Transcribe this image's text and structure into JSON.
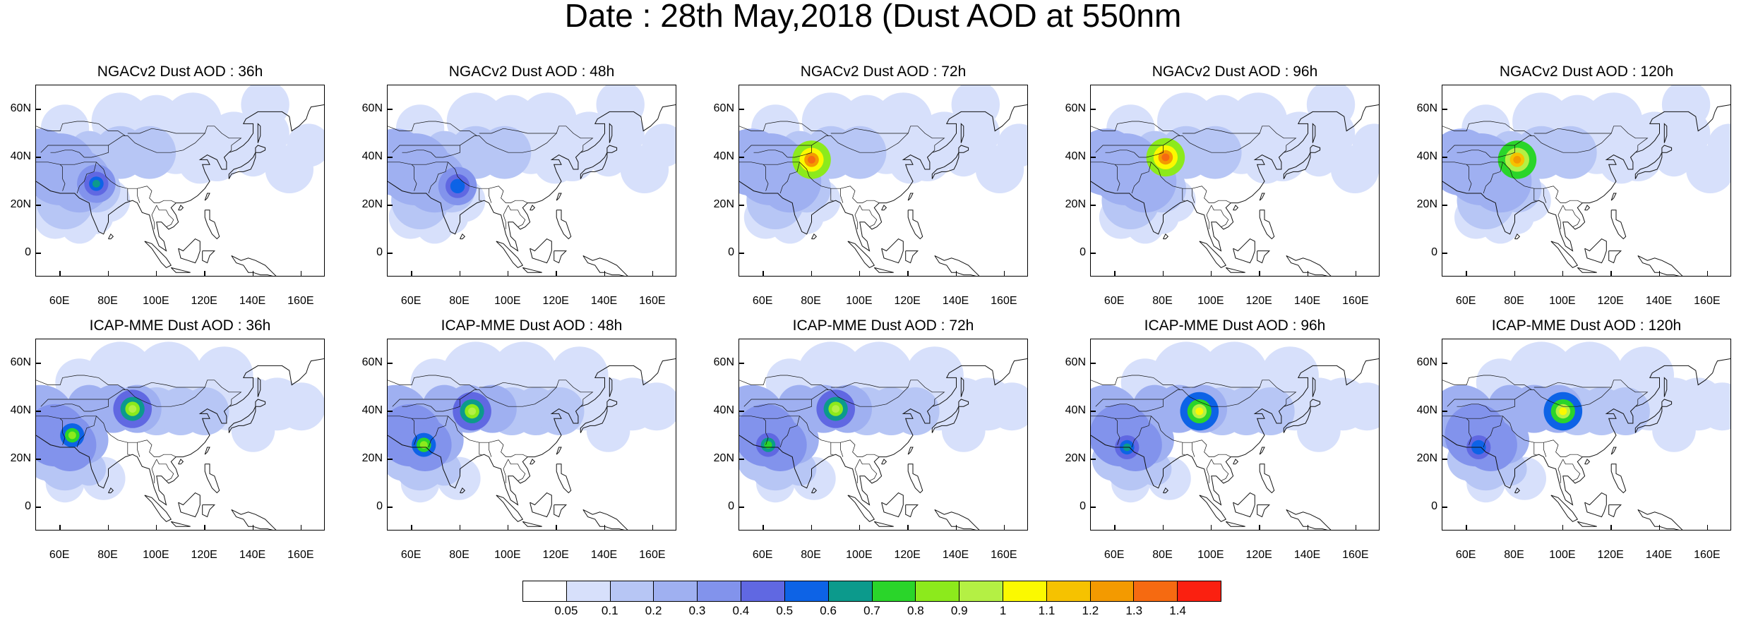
{
  "title": "Date : 28th May,2018 (Dust AOD at 550nm",
  "lat_labels": [
    "60N",
    "40N",
    "20N",
    "0"
  ],
  "lon_labels": [
    "60E",
    "80E",
    "100E",
    "120E",
    "140E",
    "160E"
  ],
  "map_extent": {
    "lon_min": 50,
    "lon_max": 170,
    "lat_min": -10,
    "lat_max": 70
  },
  "panels": [
    {
      "title": "NGACv2 Dust AOD : 36h",
      "hotspots": [
        {
          "lon": 75,
          "lat": 29,
          "level": 7
        }
      ]
    },
    {
      "title": "NGACv2 Dust AOD : 48h",
      "hotspots": [
        {
          "lon": 79,
          "lat": 28,
          "level": 6
        }
      ]
    },
    {
      "title": "NGACv2 Dust AOD : 72h",
      "hotspots": [
        {
          "lon": 80,
          "lat": 39,
          "level": 14
        }
      ]
    },
    {
      "title": "NGACv2 Dust AOD : 96h",
      "hotspots": [
        {
          "lon": 81,
          "lat": 40,
          "level": 14
        }
      ]
    },
    {
      "title": "NGACv2 Dust AOD : 120h",
      "hotspots": [
        {
          "lon": 81,
          "lat": 39,
          "level": 13
        }
      ]
    },
    {
      "title": "ICAP-MME Dust AOD : 36h",
      "hotspots": [
        {
          "lon": 90,
          "lat": 41,
          "level": 10
        },
        {
          "lon": 65,
          "lat": 30,
          "level": 9
        }
      ]
    },
    {
      "title": "ICAP-MME Dust AOD : 48h",
      "hotspots": [
        {
          "lon": 85,
          "lat": 40,
          "level": 10
        },
        {
          "lon": 65,
          "lat": 26,
          "level": 9
        }
      ]
    },
    {
      "title": "ICAP-MME Dust AOD : 72h",
      "hotspots": [
        {
          "lon": 90,
          "lat": 41,
          "level": 10
        },
        {
          "lon": 62,
          "lat": 26,
          "level": 8
        }
      ]
    },
    {
      "title": "ICAP-MME Dust AOD : 96h",
      "hotspots": [
        {
          "lon": 95,
          "lat": 40,
          "level": 11
        },
        {
          "lon": 65,
          "lat": 25,
          "level": 7
        }
      ]
    },
    {
      "title": "ICAP-MME Dust AOD : 120h",
      "hotspots": [
        {
          "lon": 100,
          "lat": 40,
          "level": 11
        },
        {
          "lon": 65,
          "lat": 25,
          "level": 6
        }
      ]
    }
  ],
  "colorbar": {
    "colors": [
      "#ffffff",
      "#d7e0fb",
      "#b7c6f5",
      "#9fb0f1",
      "#8293ec",
      "#6068e2",
      "#0d63e6",
      "#0c9a8c",
      "#2ad52a",
      "#8cea1c",
      "#b4f044",
      "#fbf900",
      "#f6c200",
      "#f39a00",
      "#f66a11",
      "#fb2010"
    ],
    "labels": [
      "0.05",
      "0.1",
      "0.2",
      "0.3",
      "0.4",
      "0.5",
      "0.6",
      "0.7",
      "0.8",
      "0.9",
      "1",
      "1.1",
      "1.2",
      "1.3",
      "1.4"
    ]
  }
}
